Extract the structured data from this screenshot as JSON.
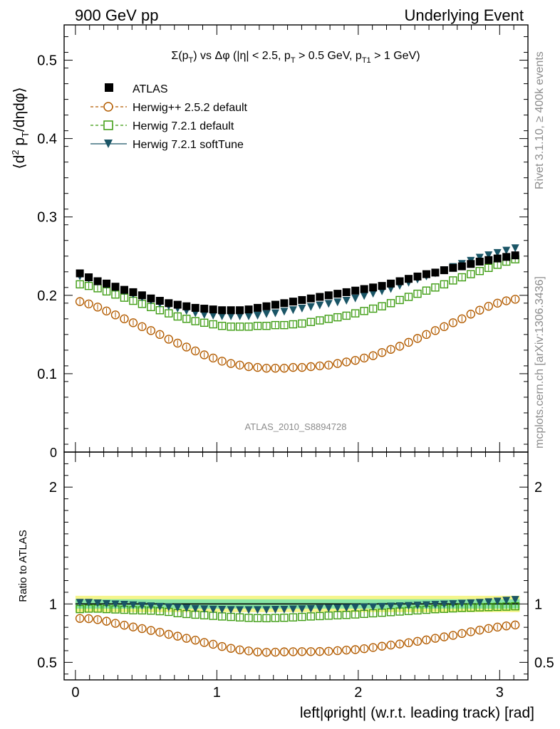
{
  "header": {
    "left": "900 GeV pp",
    "right": "Underlying Event"
  },
  "side_labels": {
    "rivet": "Rivet 3.1.10, ≥ 400k events",
    "mcplots": "mcplots.cern.ch [arXiv:1306.3436]"
  },
  "watermark": "ATLAS_2010_S8894728",
  "colors": {
    "atlas": "#000000",
    "herwigpp": "#b35c00",
    "herwig721": "#3b9b0f",
    "softtune": "#1a5566",
    "band_outer": "#f5f58c",
    "band_inner": "#88e6a6"
  },
  "chart_data": [
    {
      "type": "scatter",
      "panel": "main",
      "title": "Σ(p_T) vs Δφ (|η| < 2.5, p_T > 0.5 GeV, p_T1 > 1 GeV)",
      "title_parts": {
        "sigma": "Σ(p",
        "sub_t": "T",
        "rest1": ") vs Δφ (|η| < 2.5, p",
        "sub_t2": "T",
        "rest2": " > 0.5 GeV, p",
        "sub_t1": "T1",
        "rest3": " > 1 GeV)"
      },
      "ylabel": "⟨d² p_T/dηdφ⟩",
      "ylabel_parts": {
        "a": "⟨d",
        "sup": "2",
        "b": " p",
        "sub": "T",
        "c": "/dηdφ⟩"
      },
      "xlim": [
        -0.08,
        3.2
      ],
      "ylim": [
        0,
        0.545
      ],
      "yticks": [
        "0.1",
        "0.2",
        "0.3",
        "0.4",
        "0.5"
      ],
      "y_zero_label": "0",
      "legend_position": "top-left",
      "x": [
        0.0314,
        0.0942,
        0.1571,
        0.2199,
        0.2827,
        0.3456,
        0.4084,
        0.4712,
        0.5341,
        0.5969,
        0.6597,
        0.7226,
        0.7854,
        0.8482,
        0.9111,
        0.9739,
        1.0367,
        1.0996,
        1.1624,
        1.2252,
        1.2881,
        1.3509,
        1.4137,
        1.4765,
        1.5394,
        1.6022,
        1.665,
        1.7279,
        1.7907,
        1.8535,
        1.9164,
        1.9792,
        2.042,
        2.1049,
        2.1677,
        2.2305,
        2.2934,
        2.3562,
        2.419,
        2.4819,
        2.5447,
        2.6075,
        2.6704,
        2.7332,
        2.796,
        2.8588,
        2.9217,
        2.9845,
        3.0473,
        3.1102
      ],
      "series": [
        {
          "name": "ATLAS",
          "marker": "filled-square",
          "values": [
            0.228,
            0.223,
            0.218,
            0.215,
            0.211,
            0.207,
            0.204,
            0.2,
            0.196,
            0.193,
            0.19,
            0.188,
            0.186,
            0.184,
            0.183,
            0.182,
            0.181,
            0.181,
            0.181,
            0.182,
            0.184,
            0.186,
            0.188,
            0.19,
            0.192,
            0.194,
            0.196,
            0.198,
            0.2,
            0.202,
            0.204,
            0.206,
            0.208,
            0.21,
            0.212,
            0.215,
            0.218,
            0.221,
            0.224,
            0.227,
            0.229,
            0.232,
            0.235,
            0.237,
            0.24,
            0.243,
            0.245,
            0.247,
            0.249,
            0.251
          ]
        },
        {
          "name": "Herwig++ 2.5.2 default",
          "marker": "open-circle",
          "values": [
            0.192,
            0.189,
            0.185,
            0.18,
            0.175,
            0.17,
            0.165,
            0.16,
            0.155,
            0.15,
            0.144,
            0.139,
            0.134,
            0.129,
            0.124,
            0.12,
            0.116,
            0.113,
            0.111,
            0.109,
            0.108,
            0.107,
            0.107,
            0.107,
            0.108,
            0.108,
            0.109,
            0.11,
            0.111,
            0.113,
            0.115,
            0.117,
            0.12,
            0.123,
            0.127,
            0.131,
            0.135,
            0.14,
            0.145,
            0.15,
            0.155,
            0.16,
            0.165,
            0.17,
            0.176,
            0.181,
            0.186,
            0.19,
            0.193,
            0.195
          ]
        },
        {
          "name": "Herwig 7.2.1 default",
          "marker": "open-square",
          "values": [
            0.214,
            0.212,
            0.209,
            0.205,
            0.201,
            0.197,
            0.193,
            0.189,
            0.185,
            0.181,
            0.177,
            0.173,
            0.17,
            0.167,
            0.165,
            0.163,
            0.161,
            0.16,
            0.16,
            0.16,
            0.161,
            0.161,
            0.162,
            0.162,
            0.163,
            0.164,
            0.166,
            0.168,
            0.17,
            0.172,
            0.174,
            0.177,
            0.18,
            0.183,
            0.186,
            0.19,
            0.194,
            0.198,
            0.202,
            0.206,
            0.21,
            0.214,
            0.219,
            0.223,
            0.227,
            0.231,
            0.235,
            0.239,
            0.243,
            0.246
          ]
        },
        {
          "name": "Herwig 7.2.1 softTune",
          "marker": "filled-triangle-down",
          "values": [
            0.224,
            0.221,
            0.217,
            0.213,
            0.209,
            0.205,
            0.201,
            0.197,
            0.193,
            0.189,
            0.186,
            0.183,
            0.18,
            0.177,
            0.175,
            0.174,
            0.173,
            0.173,
            0.173,
            0.173,
            0.174,
            0.176,
            0.177,
            0.179,
            0.181,
            0.183,
            0.185,
            0.187,
            0.189,
            0.191,
            0.193,
            0.196,
            0.199,
            0.202,
            0.205,
            0.208,
            0.212,
            0.216,
            0.22,
            0.224,
            0.228,
            0.232,
            0.236,
            0.24,
            0.244,
            0.248,
            0.251,
            0.254,
            0.257,
            0.26
          ]
        }
      ]
    },
    {
      "type": "scatter",
      "panel": "ratio",
      "ylabel": "Ratio to ATLAS",
      "xlabel": "left|φright| (w.r.t. leading track) [rad]",
      "xlim": [
        -0.08,
        3.2
      ],
      "ylim": [
        0.35,
        2.3
      ],
      "xticks": [
        "0",
        "1",
        "2",
        "3"
      ],
      "yticks": [
        "0.5",
        "1",
        "2"
      ],
      "reference_band": {
        "center": 1.0,
        "inner": [
          0.96,
          1.04
        ],
        "outer": [
          0.93,
          1.07
        ]
      },
      "series": [
        {
          "name": "Herwig++ 2.5.2 default",
          "values": [
            0.876,
            0.874,
            0.866,
            0.852,
            0.834,
            0.818,
            0.803,
            0.789,
            0.773,
            0.758,
            0.74,
            0.724,
            0.706,
            0.69,
            0.67,
            0.655,
            0.636,
            0.62,
            0.607,
            0.598,
            0.589,
            0.586,
            0.587,
            0.59,
            0.591,
            0.592,
            0.592,
            0.593,
            0.595,
            0.6,
            0.605,
            0.609,
            0.617,
            0.627,
            0.638,
            0.648,
            0.657,
            0.668,
            0.68,
            0.692,
            0.706,
            0.718,
            0.731,
            0.747,
            0.762,
            0.776,
            0.79,
            0.802,
            0.812,
            0.82
          ]
        },
        {
          "name": "Herwig 7.2.1 default",
          "values": [
            0.956,
            0.96,
            0.96,
            0.956,
            0.953,
            0.95,
            0.946,
            0.945,
            0.943,
            0.938,
            0.932,
            0.921,
            0.914,
            0.908,
            0.903,
            0.898,
            0.893,
            0.889,
            0.885,
            0.881,
            0.879,
            0.878,
            0.88,
            0.882,
            0.885,
            0.889,
            0.893,
            0.896,
            0.9,
            0.903,
            0.906,
            0.91,
            0.915,
            0.92,
            0.925,
            0.93,
            0.935,
            0.94,
            0.945,
            0.95,
            0.955,
            0.958,
            0.962,
            0.966,
            0.968,
            0.971,
            0.973,
            0.975,
            0.977,
            0.98
          ]
        },
        {
          "name": "Herwig 7.2.1 softTune",
          "values": [
            1.01,
            1.01,
            1.005,
            1.0,
            0.996,
            0.993,
            0.988,
            0.983,
            0.979,
            0.975,
            0.97,
            0.966,
            0.962,
            0.958,
            0.955,
            0.952,
            0.95,
            0.948,
            0.947,
            0.947,
            0.948,
            0.948,
            0.95,
            0.951,
            0.953,
            0.955,
            0.957,
            0.959,
            0.961,
            0.963,
            0.965,
            0.967,
            0.97,
            0.972,
            0.975,
            0.978,
            0.98,
            0.983,
            0.986,
            0.989,
            0.992,
            0.995,
            0.998,
            1.002,
            1.006,
            1.01,
            1.015,
            1.02,
            1.028,
            1.035
          ]
        }
      ]
    }
  ]
}
